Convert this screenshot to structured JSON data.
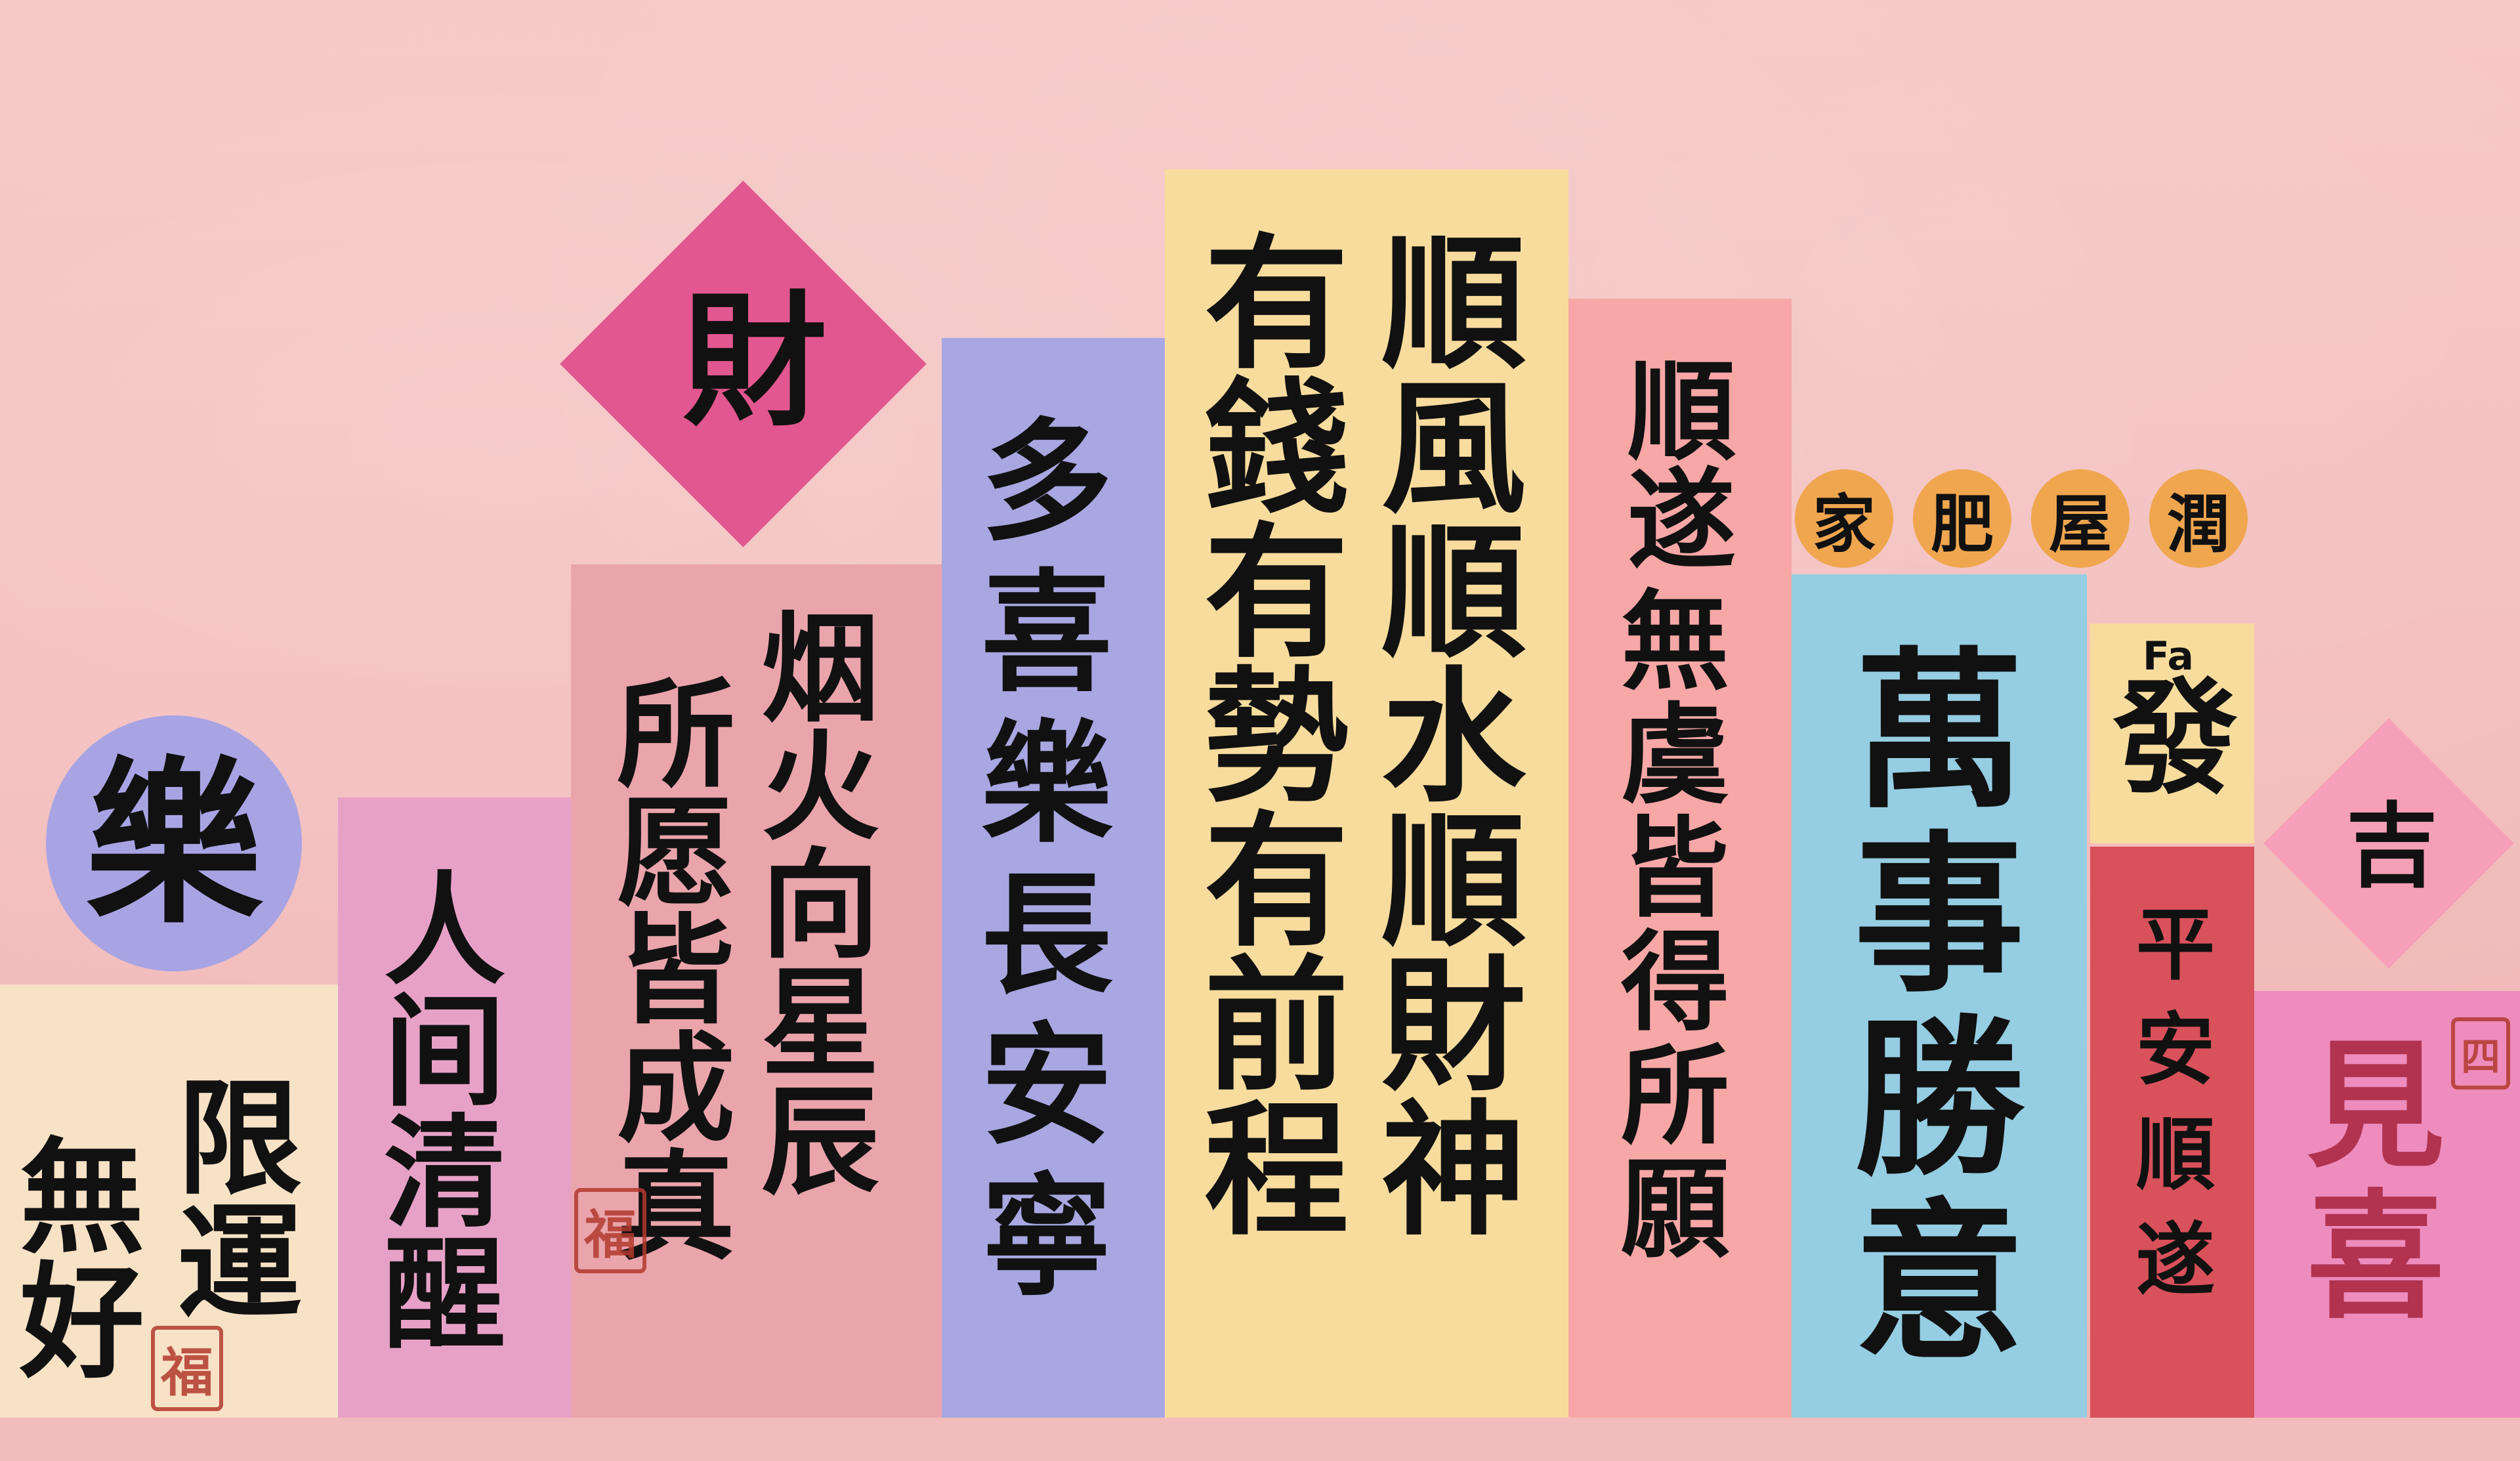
{
  "panels": {
    "le": {
      "ch": [
        "樂"
      ],
      "color": "#a8a4e4"
    },
    "wuxian": {
      "col1": [
        "限",
        "運"
      ],
      "col2": [
        "無",
        "好"
      ],
      "color": "#f7e2c6"
    },
    "renjian": {
      "ch": [
        "人",
        "间",
        "清",
        "醒"
      ],
      "color": "#e7a1c6"
    },
    "suoyuan": {
      "col1": [
        "烟",
        "火",
        "向",
        "星",
        "辰"
      ],
      "col2": [
        "所",
        "愿",
        "皆",
        "成",
        "真"
      ],
      "color": "#eaa4ac"
    },
    "cai": {
      "ch": [
        "財"
      ],
      "color": "#e2578f"
    },
    "duoxi": {
      "ch": [
        "多",
        "喜",
        "樂",
        "長",
        "安",
        "寧"
      ],
      "color": "#a8a7e2"
    },
    "shunfeng": {
      "col1": [
        "順",
        "風",
        "順",
        "水",
        "順",
        "財",
        "神"
      ],
      "col2": [
        "有",
        "錢",
        "有",
        "勢",
        "有",
        "前",
        "程"
      ],
      "color": "#f8dc9d"
    },
    "shunsui": {
      "col1": [
        "順",
        "遂"
      ],
      "col2": [
        "無",
        "虞",
        "皆",
        "得",
        "所",
        "願"
      ],
      "color": "#f6a7a6"
    },
    "jiafei": {
      "ch": [
        "家",
        "肥",
        "屋",
        "潤"
      ],
      "color": "#f0a64f"
    },
    "wanshi": {
      "ch": [
        "萬",
        "事",
        "勝",
        "意"
      ],
      "color": "#95cde2"
    },
    "fa": {
      "small": "Fa",
      "ch": [
        "發"
      ],
      "color": "#f8dc9d"
    },
    "pingan": {
      "ch": [
        "平",
        "安",
        "順",
        "遂"
      ],
      "color": "#d8515b"
    },
    "ji": {
      "ch": [
        "吉"
      ],
      "color": "#f5a0b8"
    },
    "jianxi": {
      "ch": [
        "見",
        "喜"
      ],
      "color": "#ee8cbe"
    }
  },
  "seals": {
    "fu": "福",
    "fu2": "福",
    "si": "四"
  }
}
